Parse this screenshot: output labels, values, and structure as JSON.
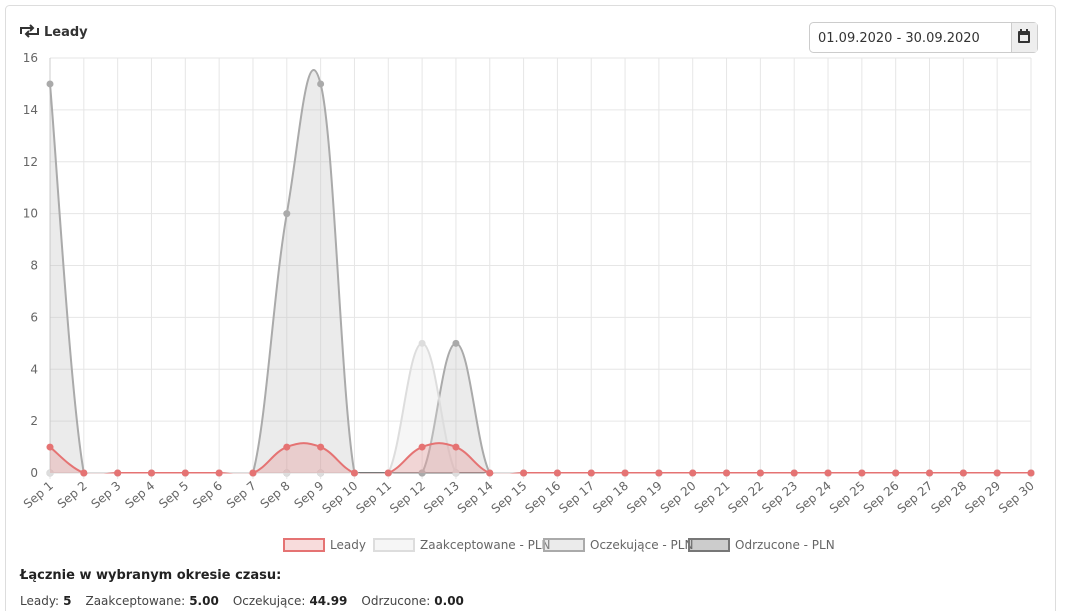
{
  "header": {
    "title": "Leady",
    "date_range": "01.09.2020 - 30.09.2020"
  },
  "chart_data": {
    "type": "line",
    "smooth": true,
    "fill": true,
    "categories": [
      "Sep 1",
      "Sep 2",
      "Sep 3",
      "Sep 4",
      "Sep 5",
      "Sep 6",
      "Sep 7",
      "Sep 8",
      "Sep 9",
      "Sep 10",
      "Sep 11",
      "Sep 12",
      "Sep 13",
      "Sep 14",
      "Sep 15",
      "Sep 16",
      "Sep 17",
      "Sep 18",
      "Sep 19",
      "Sep 20",
      "Sep 21",
      "Sep 22",
      "Sep 23",
      "Sep 24",
      "Sep 25",
      "Sep 26",
      "Sep 27",
      "Sep 28",
      "Sep 29",
      "Sep 30"
    ],
    "series": [
      {
        "name": "Leady",
        "color": "#e57373",
        "fill_color": "rgba(229,115,115,0.25)",
        "values": [
          1,
          0,
          0,
          0,
          0,
          0,
          0,
          1,
          1,
          0,
          0,
          1,
          1,
          0,
          0,
          0,
          0,
          0,
          0,
          0,
          0,
          0,
          0,
          0,
          0,
          0,
          0,
          0,
          0,
          0
        ]
      },
      {
        "name": "Zaakceptowane - PLN",
        "color": "#dddddd",
        "fill_color": "rgba(225,225,225,0.3)",
        "values": [
          0,
          0,
          0,
          0,
          0,
          0,
          0,
          0,
          0,
          0,
          0,
          5,
          0,
          0,
          0,
          0,
          0,
          0,
          0,
          0,
          0,
          0,
          0,
          0,
          0,
          0,
          0,
          0,
          0,
          0
        ]
      },
      {
        "name": "Oczekujące - PLN",
        "color": "#aaaaaa",
        "fill_color": "rgba(190,190,190,0.3)",
        "values": [
          15,
          0,
          0,
          0,
          0,
          0,
          0,
          10,
          15,
          0,
          0,
          0,
          5,
          0,
          0,
          0,
          0,
          0,
          0,
          0,
          0,
          0,
          0,
          0,
          0,
          0,
          0,
          0,
          0,
          0
        ]
      },
      {
        "name": "Odrzucone - PLN",
        "color": "#777777",
        "fill_color": "rgba(110,110,110,0.35)",
        "values": [
          0,
          0,
          0,
          0,
          0,
          0,
          0,
          0,
          0,
          0,
          0,
          0,
          0,
          0,
          0,
          0,
          0,
          0,
          0,
          0,
          0,
          0,
          0,
          0,
          0,
          0,
          0,
          0,
          0,
          0
        ]
      }
    ],
    "ylim": [
      0,
      16
    ],
    "yticks": [
      0,
      2,
      4,
      6,
      8,
      10,
      12,
      14,
      16
    ],
    "grid": true,
    "legend": "bottom"
  },
  "summary": {
    "title": "Łącznie w wybranym okresie czasu:",
    "items": [
      {
        "label": "Leady:",
        "value": "5"
      },
      {
        "label": "Zaakceptowane:",
        "value": "5.00"
      },
      {
        "label": "Oczekujące:",
        "value": "44.99"
      },
      {
        "label": "Odrzucone:",
        "value": "0.00"
      }
    ]
  }
}
